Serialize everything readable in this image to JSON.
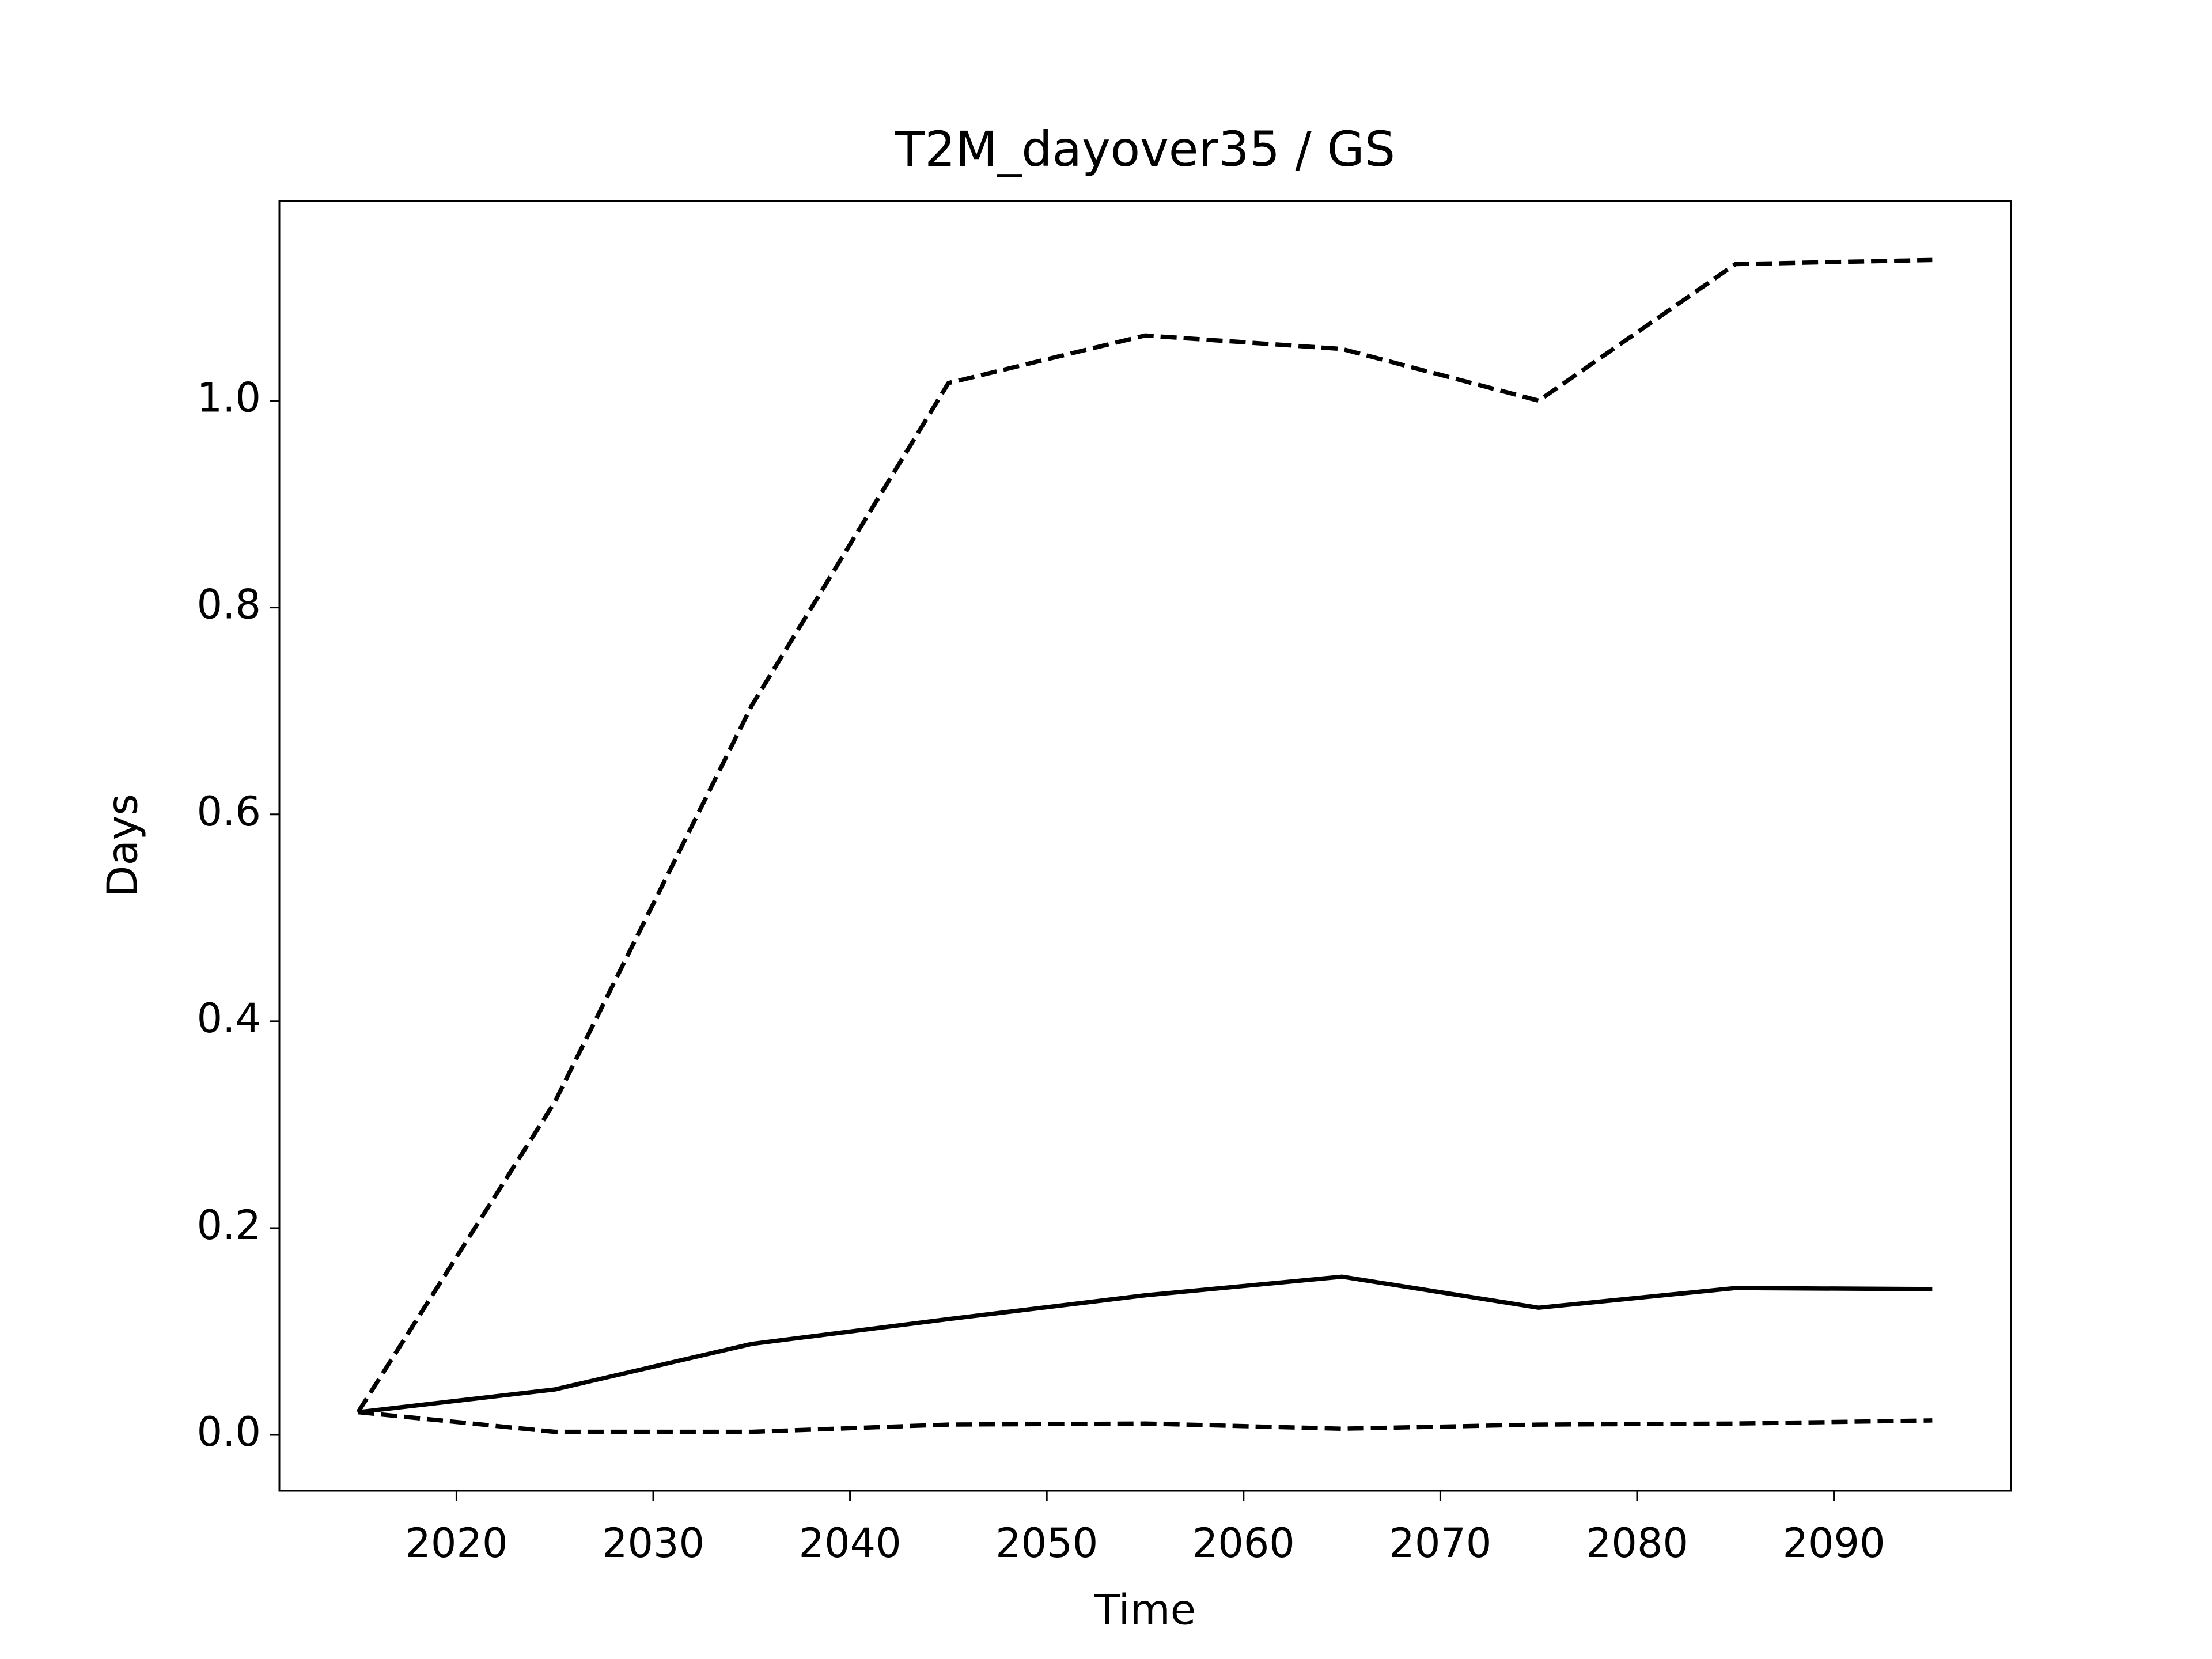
{
  "chart_data": {
    "type": "line",
    "title": "T2M_dayover35 / GS",
    "x_label": "Time",
    "y_label": "Days",
    "x": [
      2015,
      2025,
      2035,
      2045,
      2055,
      2065,
      2075,
      2085,
      2095
    ],
    "series": [
      {
        "color": "#000000",
        "linestyle": "dashed",
        "values": [
          0.022,
          0.322,
          0.705,
          1.017,
          1.063,
          1.05,
          1.0,
          1.132,
          1.136
        ]
      },
      {
        "color": "#000000",
        "linestyle": "solid",
        "values": [
          0.022,
          0.044,
          0.088,
          0.112,
          0.135,
          0.153,
          0.123,
          0.142,
          0.141
        ]
      },
      {
        "color": "#000000",
        "linestyle": "dashed",
        "values": [
          0.022,
          0.003,
          0.003,
          0.01,
          0.011,
          0.006,
          0.01,
          0.011,
          0.014
        ]
      }
    ],
    "xlim": [
      2011,
      2099
    ],
    "ylim": [
      -0.054,
      1.193
    ],
    "xticks": [
      2020,
      2030,
      2040,
      2050,
      2060,
      2070,
      2080,
      2090
    ],
    "yticks": [
      {
        "value": 0,
        "label": "0.0"
      },
      0.2,
      0.4,
      0.6,
      0.8,
      {
        "value": 1,
        "label": "1.0"
      }
    ],
    "grid": false
  }
}
